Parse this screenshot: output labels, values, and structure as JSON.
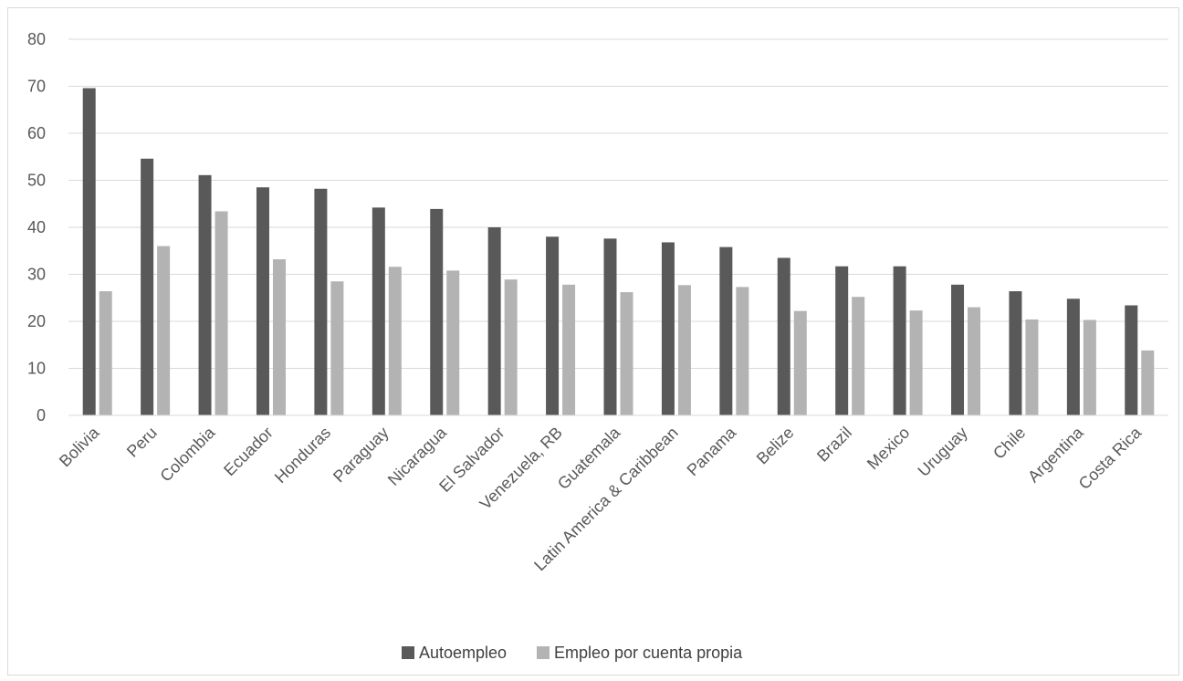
{
  "chart_data": {
    "type": "bar",
    "categories": [
      "Bolivia",
      "Peru",
      "Colombia",
      "Ecuador",
      "Honduras",
      "Paraguay",
      "Nicaragua",
      "El Salvador",
      "Venezuela, RB",
      "Guatemala",
      "Latin America & Caribbean",
      "Panama",
      "Belize",
      "Brazil",
      "Mexico",
      "Uruguay",
      "Chile",
      "Argentina",
      "Costa Rica"
    ],
    "series": [
      {
        "name": "Autoempleo",
        "color": "#595959",
        "values": [
          69.6,
          54.6,
          51.1,
          48.5,
          48.2,
          44.2,
          43.9,
          40.0,
          38.0,
          37.6,
          36.8,
          35.8,
          33.5,
          31.7,
          31.7,
          27.8,
          26.4,
          24.8,
          23.4
        ]
      },
      {
        "name": "Empleo por cuenta propia",
        "color": "#b3b3b3",
        "values": [
          26.4,
          36.0,
          43.4,
          33.2,
          28.5,
          31.6,
          30.8,
          28.9,
          27.8,
          26.2,
          27.7,
          27.3,
          22.2,
          25.2,
          22.3,
          23.0,
          20.4,
          20.3,
          13.8
        ]
      }
    ],
    "y_ticks": [
      "0",
      "10",
      "20",
      "30",
      "40",
      "50",
      "60",
      "70",
      "80"
    ],
    "ylim": [
      0,
      80
    ],
    "grid": true,
    "legend": "bottom-center",
    "title": "",
    "xlabel": "",
    "ylabel": ""
  }
}
